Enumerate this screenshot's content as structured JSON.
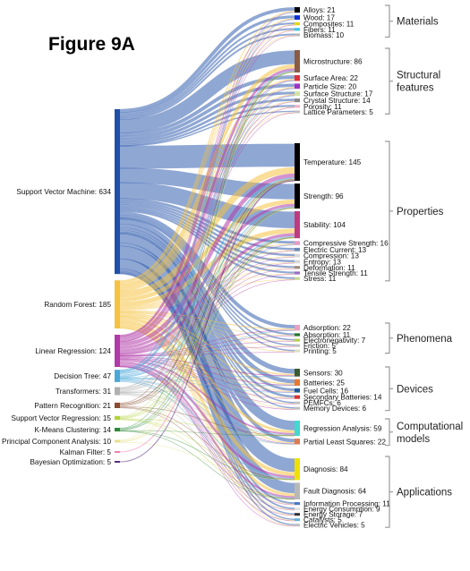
{
  "figure_title": "Figure 9A",
  "colors": {
    "svm": "#1f4fa8",
    "rf": "#f5c242",
    "lr": "#b03aa8",
    "dt": "#4aa8d8",
    "tr": "#b0b0b0",
    "pr": "#8a4b2e",
    "svr": "#b4d43a",
    "km": "#2e8a3a",
    "pca": "#e8e08a",
    "kf": "#f080b0",
    "bo": "#5a2d82"
  },
  "chart_data": {
    "type": "sankey",
    "title": "Figure 9A",
    "sources": [
      {
        "label": "Support Vector Machine: 634",
        "name": "Support Vector Machine",
        "value": 634,
        "color_key": "svm"
      },
      {
        "label": "Random Forest: 185",
        "name": "Random Forest",
        "value": 185,
        "color_key": "rf"
      },
      {
        "label": "Linear Regression: 124",
        "name": "Linear Regression",
        "value": 124,
        "color_key": "lr"
      },
      {
        "label": "Decision Tree: 47",
        "name": "Decision Tree",
        "value": 47,
        "color_key": "dt"
      },
      {
        "label": "Transformers: 31",
        "name": "Transformers",
        "value": 31,
        "color_key": "tr"
      },
      {
        "label": "Pattern Recognition: 21",
        "name": "Pattern Recognition",
        "value": 21,
        "color_key": "pr"
      },
      {
        "label": "Support Vector Regression: 15",
        "name": "Support Vector Regression",
        "value": 15,
        "color_key": "svr"
      },
      {
        "label": "K-Means Clustering: 14",
        "name": "K-Means Clustering",
        "value": 14,
        "color_key": "km"
      },
      {
        "label": "Principal Component Analysis: 10",
        "name": "Principal Component Analysis",
        "value": 10,
        "color_key": "pca"
      },
      {
        "label": "Kalman Filter: 5",
        "name": "Kalman Filter",
        "value": 5,
        "color_key": "kf"
      },
      {
        "label": "Bayesian Optimization: 5",
        "name": "Bayesian Optimization",
        "value": 5,
        "color_key": "bo"
      }
    ],
    "groups": [
      {
        "label": "Materials",
        "targets": [
          {
            "label": "Alloys: 21",
            "name": "Alloys",
            "value": 21,
            "color": "#000000"
          },
          {
            "label": "Wood: 17",
            "name": "Wood",
            "value": 17,
            "color": "#0b2fd6"
          },
          {
            "label": "Composites: 11",
            "name": "Composites",
            "value": 11,
            "color": "#e6d700"
          },
          {
            "label": "Fibers: 11",
            "name": "Fibers",
            "value": 11,
            "color": "#36c8e8"
          },
          {
            "label": "Biomass: 10",
            "name": "Biomass",
            "value": 10,
            "color": "#b8b8b8"
          }
        ]
      },
      {
        "label": "Structural features",
        "targets": [
          {
            "label": "Microstructure: 86",
            "name": "Microstructure",
            "value": 86,
            "color": "#8b5a44"
          },
          {
            "label": "Surface Area: 22",
            "name": "Surface Area",
            "value": 22,
            "color": "#e0303a"
          },
          {
            "label": "Particle Size: 20",
            "name": "Particle Size",
            "value": 20,
            "color": "#a032c8"
          },
          {
            "label": "Surface Structure: 17",
            "name": "Surface Structure",
            "value": 17,
            "color": "#d0e4a0"
          },
          {
            "label": "Crystal Structure: 14",
            "name": "Crystal Structure",
            "value": 14,
            "color": "#888888"
          },
          {
            "label": "Porosity: 11",
            "name": "Porosity",
            "value": 11,
            "color": "#f0b0c8"
          },
          {
            "label": "Lattice Parameters: 5",
            "name": "Lattice Parameters",
            "value": 5,
            "color": "#c0c0c0"
          }
        ]
      },
      {
        "label": "Properties",
        "targets": [
          {
            "label": "Temperature: 145",
            "name": "Temperature",
            "value": 145,
            "color": "#000000"
          },
          {
            "label": "Strength: 96",
            "name": "Strength",
            "value": 96,
            "color": "#000000"
          },
          {
            "label": "Stability: 104",
            "name": "Stability",
            "value": 104,
            "color": "#c03a80"
          },
          {
            "label": "Compressive Strength: 16",
            "name": "Compressive Strength",
            "value": 16,
            "color": "#e89ac8"
          },
          {
            "label": "Electric Current: 13",
            "name": "Electric Current",
            "value": 13,
            "color": "#6a8ab8"
          },
          {
            "label": "Compression: 13",
            "name": "Compression",
            "value": 13,
            "color": "#d8d8d8"
          },
          {
            "label": "Entropy: 13",
            "name": "Entropy",
            "value": 13,
            "color": "#d8d8d8"
          },
          {
            "label": "Deformation: 11",
            "name": "Deformation",
            "value": 11,
            "color": "#a08878"
          },
          {
            "label": "Tensile Strength: 11",
            "name": "Tensile Strength",
            "value": 11,
            "color": "#9a6ac8"
          },
          {
            "label": "Stress: 11",
            "name": "Stress",
            "value": 11,
            "color": "#c8d890"
          }
        ]
      },
      {
        "label": "Phenomena",
        "targets": [
          {
            "label": "Adsorption: 22",
            "name": "Adsorption",
            "value": 22,
            "color": "#e8a0c0"
          },
          {
            "label": "Absorption: 11",
            "name": "Absorption",
            "value": 11,
            "color": "#1e7a2a"
          },
          {
            "label": "Electronegativity: 7",
            "name": "Electronegativity",
            "value": 7,
            "color": "#b0d040"
          },
          {
            "label": "Friction: 5",
            "name": "Friction",
            "value": 5,
            "color": "#c0c0c0"
          },
          {
            "label": "Printing: 5",
            "name": "Printing",
            "value": 5,
            "color": "#d8e0c0"
          }
        ]
      },
      {
        "label": "Devices",
        "targets": [
          {
            "label": "Sensors: 30",
            "name": "Sensors",
            "value": 30,
            "color": "#3a5a30"
          },
          {
            "label": "Batteries: 25",
            "name": "Batteries",
            "value": 25,
            "color": "#e87830"
          },
          {
            "label": "Fuel Cells: 16",
            "name": "Fuel Cells",
            "value": 16,
            "color": "#1e5a9a"
          },
          {
            "label": "Secondary Batteries: 14",
            "name": "Secondary Batteries",
            "value": 14,
            "color": "#e03030"
          },
          {
            "label": "PEMFCs: 6",
            "name": "PEMFCs",
            "value": 6,
            "color": "#c0c0c0"
          },
          {
            "label": "Memory Devices: 6",
            "name": "Memory Devices",
            "value": 6,
            "color": "#c0c0c0"
          }
        ]
      },
      {
        "label": "Computational models",
        "targets": [
          {
            "label": "Regression Analysis: 59",
            "name": "Regression Analysis",
            "value": 59,
            "color": "#40d8d0"
          },
          {
            "label": "Partial Least Squares: 22",
            "name": "Partial Least Squares",
            "value": 22,
            "color": "#e07850"
          }
        ]
      },
      {
        "label": "Applications",
        "targets": [
          {
            "label": "Diagnosis: 84",
            "name": "Diagnosis",
            "value": 84,
            "color": "#f0e000"
          },
          {
            "label": "Fault Diagnosis: 64",
            "name": "Fault Diagnosis",
            "value": 64,
            "color": "#b8b8b8"
          },
          {
            "label": "Information Processing: 11",
            "name": "Information Processing",
            "value": 11,
            "color": "#4a7ac8"
          },
          {
            "label": "Energy Consumption: 9",
            "name": "Energy Consumption",
            "value": 9,
            "color": "#e0e0e0"
          },
          {
            "label": "Energy Storage: 7",
            "name": "Energy Storage",
            "value": 7,
            "color": "#303030"
          },
          {
            "label": "Catalysts: 5",
            "name": "Catalysts",
            "value": 5,
            "color": "#60b0e0"
          },
          {
            "label": "Electric Vehicles: 5",
            "name": "Electric Vehicles",
            "value": 5,
            "color": "#c0c0c0"
          }
        ]
      }
    ]
  }
}
